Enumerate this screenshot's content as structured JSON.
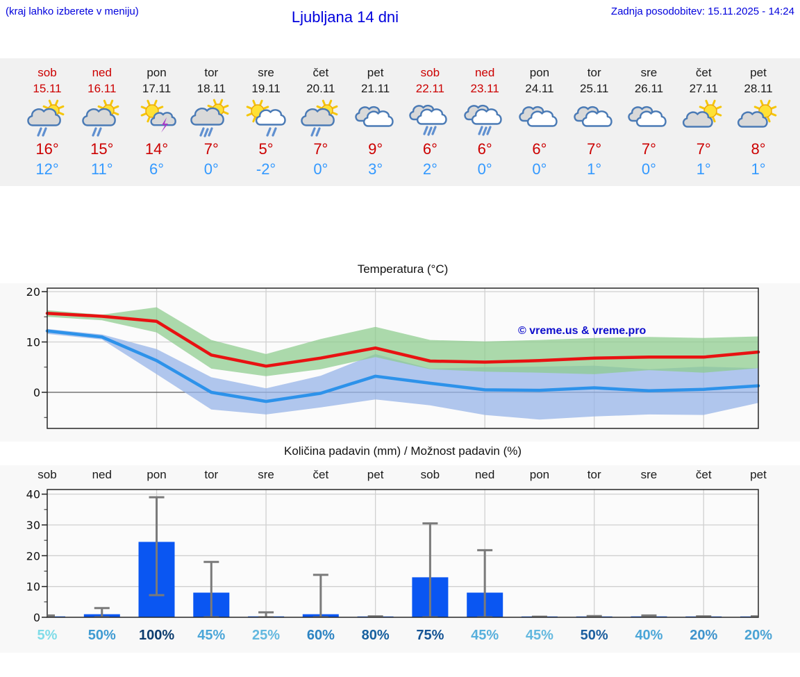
{
  "header": {
    "menu_hint": "(kraj lahko izberete v meniju)",
    "title": "Ljubljana 14 dni",
    "last_update": "Zadnja posodobitev: 15.11.2025 - 14:24"
  },
  "colors": {
    "link_blue": "#0000dd",
    "weekend_red": "#cc0000",
    "tmax_red": "#cc0000",
    "tmin_blue": "#3399ff",
    "bar_blue": "#0a56f2",
    "whisker_gray": "#7a7a7a",
    "max_line": "#e81212",
    "min_line": "#2d92ea",
    "max_band": "#8ccc8c",
    "min_band": "#97b4e8"
  },
  "days": [
    {
      "name": "sob",
      "date": "15.11",
      "weekend": true,
      "icon": "sun-cloud-rain",
      "tmax": "16°",
      "tmin": "12°"
    },
    {
      "name": "ned",
      "date": "16.11",
      "weekend": true,
      "icon": "sun-cloud-rain",
      "tmax": "15°",
      "tmin": "11°"
    },
    {
      "name": "pon",
      "date": "17.11",
      "weekend": false,
      "icon": "sun-cloud-storm",
      "tmax": "14°",
      "tmin": "6°"
    },
    {
      "name": "tor",
      "date": "18.11",
      "weekend": false,
      "icon": "sun-cloud-heavyrain",
      "tmax": "7°",
      "tmin": "0°"
    },
    {
      "name": "sre",
      "date": "19.11",
      "weekend": false,
      "icon": "sun-cloud-rain2",
      "tmax": "5°",
      "tmin": "-2°"
    },
    {
      "name": "čet",
      "date": "20.11",
      "weekend": false,
      "icon": "sun-cloud-rain",
      "tmax": "7°",
      "tmin": "0°"
    },
    {
      "name": "pet",
      "date": "21.11",
      "weekend": false,
      "icon": "cloudy",
      "tmax": "9°",
      "tmin": "3°"
    },
    {
      "name": "sob",
      "date": "22.11",
      "weekend": true,
      "icon": "cloudy-rain",
      "tmax": "6°",
      "tmin": "2°"
    },
    {
      "name": "ned",
      "date": "23.11",
      "weekend": true,
      "icon": "cloudy-rain",
      "tmax": "6°",
      "tmin": "0°"
    },
    {
      "name": "pon",
      "date": "24.11",
      "weekend": false,
      "icon": "cloudy",
      "tmax": "6°",
      "tmin": "0°"
    },
    {
      "name": "tor",
      "date": "25.11",
      "weekend": false,
      "icon": "cloudy",
      "tmax": "7°",
      "tmin": "1°"
    },
    {
      "name": "sre",
      "date": "26.11",
      "weekend": false,
      "icon": "cloudy",
      "tmax": "7°",
      "tmin": "0°"
    },
    {
      "name": "čet",
      "date": "27.11",
      "weekend": false,
      "icon": "cloud-sun",
      "tmax": "7°",
      "tmin": "1°"
    },
    {
      "name": "pet",
      "date": "28.11",
      "weekend": false,
      "icon": "cloud-sun",
      "tmax": "8°",
      "tmin": "1°"
    }
  ],
  "chart_data": [
    {
      "type": "line",
      "title": "Temperatura (°C)",
      "watermark": "© vreme.us & vreme.pro",
      "categories": [
        "15.11",
        "16.11",
        "17.11",
        "18.11",
        "19.11",
        "20.11",
        "21.11",
        "22.11",
        "23.11",
        "24.11",
        "25.11",
        "26.11",
        "27.11",
        "28.11"
      ],
      "ylim": [
        -7.2,
        20.7
      ],
      "yticks": [
        0,
        10,
        20
      ],
      "yticks_minor": [
        -5,
        5,
        15
      ],
      "grid_columns": [
        2,
        4,
        6,
        8,
        10,
        12
      ],
      "series": [
        {
          "name": "max temperature",
          "color": "#e81212",
          "values": [
            15.7,
            15.1,
            14.1,
            7.4,
            5.2,
            6.8,
            8.8,
            6.2,
            6.0,
            6.3,
            6.8,
            7.0,
            7.0,
            8.0
          ]
        },
        {
          "name": "min temperature",
          "color": "#2d92ea",
          "values": [
            12.2,
            11.0,
            6.3,
            0.0,
            -1.8,
            -0.2,
            3.2,
            1.8,
            0.5,
            0.4,
            0.9,
            0.3,
            0.6,
            1.3
          ]
        }
      ],
      "bands": [
        {
          "name": "max range",
          "color": "#8ccc8c",
          "upper": [
            16.3,
            15.4,
            16.9,
            10.4,
            7.6,
            10.6,
            13.0,
            10.4,
            10.1,
            10.4,
            10.8,
            11.0,
            10.8,
            11.1
          ],
          "lower": [
            15.0,
            14.3,
            11.9,
            4.7,
            3.2,
            4.6,
            7.0,
            4.6,
            4.1,
            3.9,
            3.6,
            4.4,
            3.9,
            4.8
          ]
        },
        {
          "name": "min range",
          "color": "#97b4e8",
          "upper": [
            12.6,
            11.5,
            8.6,
            3.0,
            0.8,
            3.3,
            7.6,
            4.7,
            5.0,
            5.1,
            5.3,
            4.6,
            5.1,
            4.8
          ],
          "lower": [
            11.6,
            10.5,
            3.6,
            -3.4,
            -4.4,
            -3.0,
            -1.4,
            -2.6,
            -4.5,
            -5.4,
            -4.8,
            -4.4,
            -4.5,
            -2.1
          ]
        }
      ]
    },
    {
      "type": "bar",
      "title": "Količina padavin (mm) / Možnost padavin (%)",
      "categories": [
        "sob",
        "ned",
        "pon",
        "tor",
        "sre",
        "čet",
        "pet",
        "sob",
        "ned",
        "pon",
        "tor",
        "sre",
        "čet",
        "pet"
      ],
      "values": [
        0.3,
        1.0,
        24.5,
        8.0,
        0.3,
        1.0,
        0.1,
        13.0,
        8.0,
        0.1,
        0.15,
        0.3,
        0.1,
        0.1
      ],
      "whisker_low": [
        0,
        0,
        7.2,
        0,
        0,
        0,
        0,
        0,
        0,
        0,
        0,
        0,
        0,
        0
      ],
      "whisker_high": [
        0.6,
        3.0,
        39.0,
        18.0,
        1.6,
        13.8,
        0.3,
        30.5,
        21.8,
        0.2,
        0.4,
        0.6,
        0.3,
        0.3
      ],
      "ylim": [
        0,
        41.5
      ],
      "yticks": [
        0,
        10,
        20,
        30,
        40
      ],
      "yticks_minor": [
        5,
        15,
        25,
        35
      ],
      "grid_columns": [
        2,
        4,
        6,
        8,
        10,
        12
      ],
      "probabilities": [
        {
          "label": "5%",
          "color": "#7fdce8"
        },
        {
          "label": "50%",
          "color": "#3e9ad2"
        },
        {
          "label": "100%",
          "color": "#0c3c6e"
        },
        {
          "label": "45%",
          "color": "#4ba6d8"
        },
        {
          "label": "25%",
          "color": "#63b8df"
        },
        {
          "label": "60%",
          "color": "#2c83c2"
        },
        {
          "label": "80%",
          "color": "#17609f"
        },
        {
          "label": "75%",
          "color": "#145394"
        },
        {
          "label": "45%",
          "color": "#57afdc"
        },
        {
          "label": "45%",
          "color": "#63b8df"
        },
        {
          "label": "50%",
          "color": "#1c5f9f"
        },
        {
          "label": "40%",
          "color": "#4ba6d8"
        },
        {
          "label": "20%",
          "color": "#3e93cc"
        },
        {
          "label": "20%",
          "color": "#4aa3d4"
        }
      ]
    }
  ]
}
